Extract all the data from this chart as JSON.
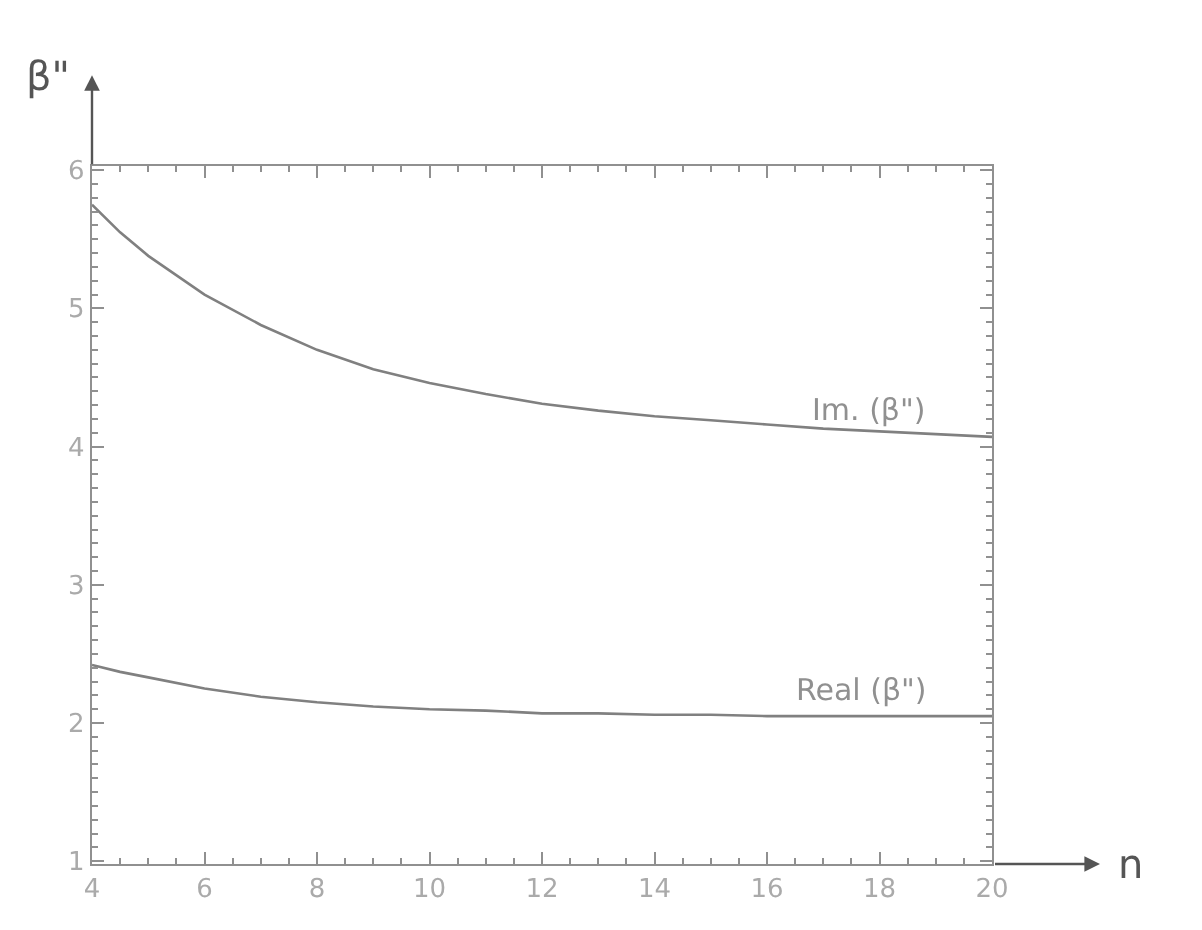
{
  "chart_data": {
    "type": "line",
    "xlabel": "n",
    "ylabel": "β\"",
    "x": [
      4,
      4.5,
      5,
      6,
      7,
      8,
      9,
      10,
      11,
      12,
      13,
      14,
      15,
      16,
      17,
      18,
      19,
      20
    ],
    "series": [
      {
        "name": "Im. (β\")",
        "color": "#808080",
        "values": [
          5.75,
          5.55,
          5.38,
          5.1,
          4.88,
          4.7,
          4.56,
          4.46,
          4.38,
          4.31,
          4.26,
          4.22,
          4.19,
          4.16,
          4.13,
          4.11,
          4.09,
          4.07
        ]
      },
      {
        "name": "Real (β\")",
        "color": "#808080",
        "values": [
          2.42,
          2.37,
          2.33,
          2.25,
          2.19,
          2.15,
          2.12,
          2.1,
          2.09,
          2.07,
          2.07,
          2.06,
          2.06,
          2.05,
          2.05,
          2.05,
          2.05,
          2.05
        ]
      }
    ],
    "xlim": [
      4,
      20
    ],
    "xticks": [
      4,
      6,
      8,
      10,
      12,
      14,
      16,
      18,
      20
    ],
    "ylim": [
      0.98,
      6.03
    ],
    "yticks": [
      1,
      2,
      3,
      4,
      5,
      6
    ],
    "legend": "right",
    "marker": "none",
    "line_style": "solid"
  }
}
